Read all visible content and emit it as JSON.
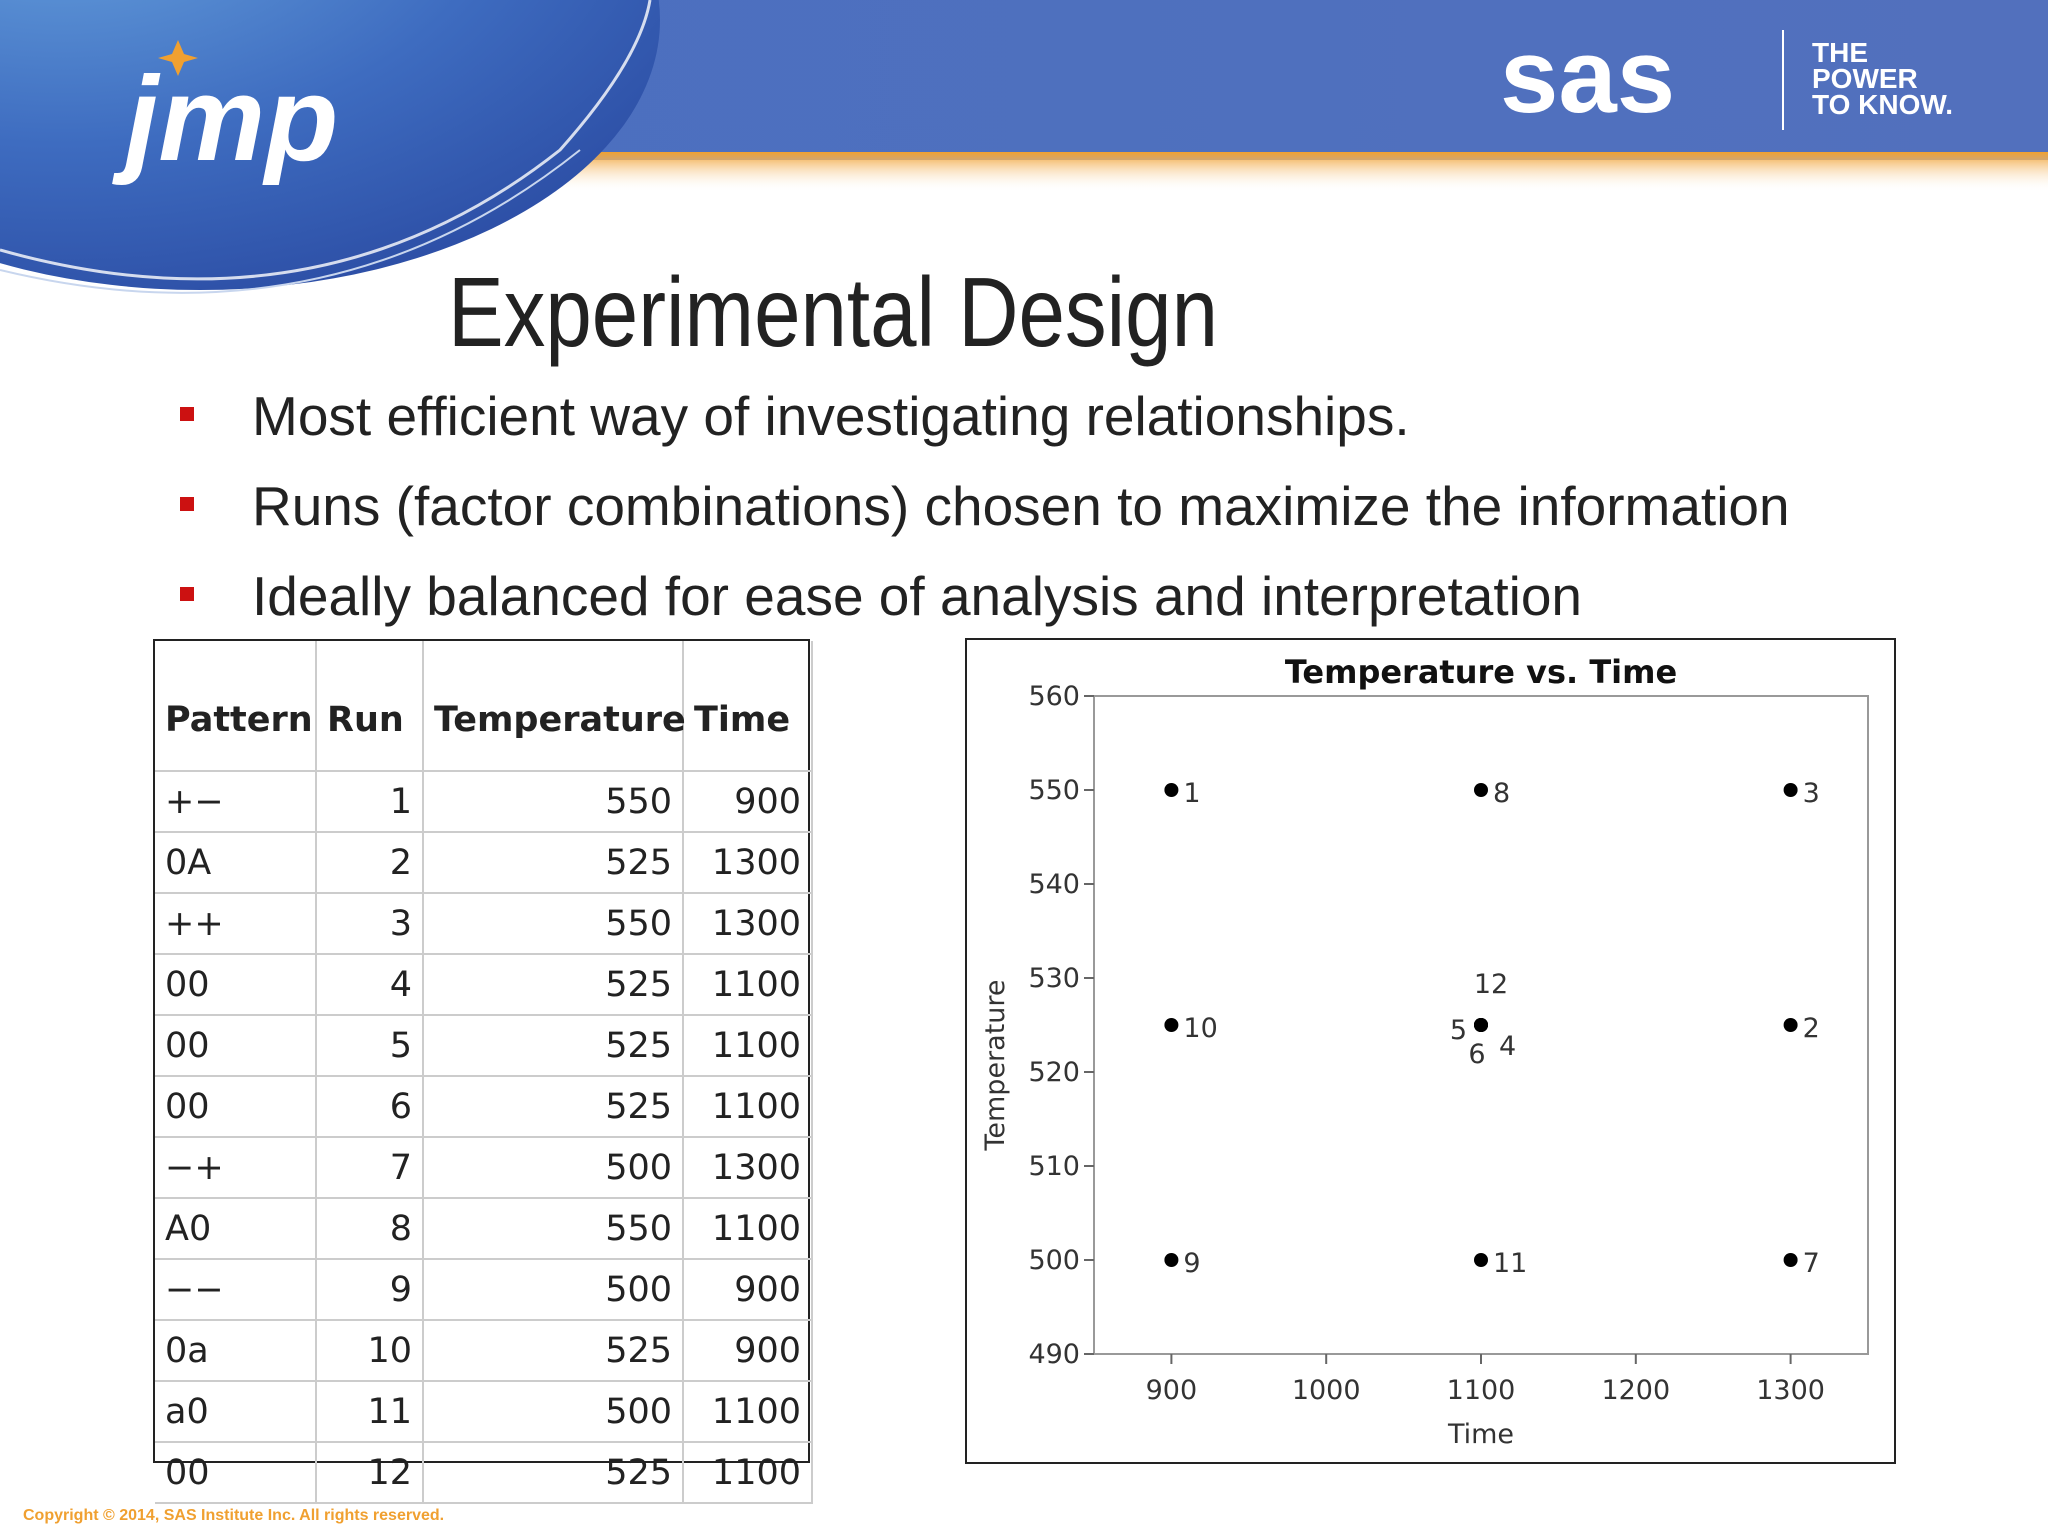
{
  "header": {
    "logo_left": "jmp",
    "logo_right": "sas",
    "tagline": [
      "THE",
      "POWER",
      "TO KNOW."
    ]
  },
  "title": "Experimental Design",
  "bullets": [
    "Most efficient way of investigating relationships.",
    "Runs (factor combinations) chosen to maximize the information",
    "Ideally balanced for ease of analysis and interpretation"
  ],
  "table": {
    "columns": [
      "Pattern",
      "Run",
      "Temperature",
      "Time"
    ],
    "rows": [
      [
        "+−",
        1,
        550,
        900
      ],
      [
        "0A",
        2,
        525,
        1300
      ],
      [
        "++",
        3,
        550,
        1300
      ],
      [
        "00",
        4,
        525,
        1100
      ],
      [
        "00",
        5,
        525,
        1100
      ],
      [
        "00",
        6,
        525,
        1100
      ],
      [
        "−+",
        7,
        500,
        1300
      ],
      [
        "A0",
        8,
        550,
        1100
      ],
      [
        "−−",
        9,
        500,
        900
      ],
      [
        "0a",
        10,
        525,
        900
      ],
      [
        "a0",
        11,
        500,
        1100
      ],
      [
        "00",
        12,
        525,
        1100
      ]
    ]
  },
  "chart_data": {
    "type": "scatter",
    "title": "Temperature vs. Time",
    "x_label": "Time",
    "y_label": "Temperature",
    "x": [
      900,
      1300,
      1300,
      1100,
      1100,
      1100,
      1300,
      1100,
      900,
      900,
      1100,
      1100
    ],
    "values": [
      550,
      525,
      550,
      525,
      525,
      525,
      500,
      550,
      500,
      525,
      500,
      525
    ],
    "labels": [
      "1",
      "2",
      "3",
      "4",
      "5",
      "6",
      "7",
      "8",
      "9",
      "10",
      "11",
      "12"
    ],
    "color": "#000000",
    "xlim": [
      850,
      1350
    ],
    "ylim": [
      490,
      560
    ],
    "xticks": [
      900,
      1000,
      1100,
      1200,
      1300
    ],
    "yticks": [
      490,
      500,
      510,
      520,
      530,
      540,
      550,
      560
    ]
  },
  "footer": {
    "copyright": "Copyright © 2014, SAS Institute Inc. All rights reserved."
  }
}
